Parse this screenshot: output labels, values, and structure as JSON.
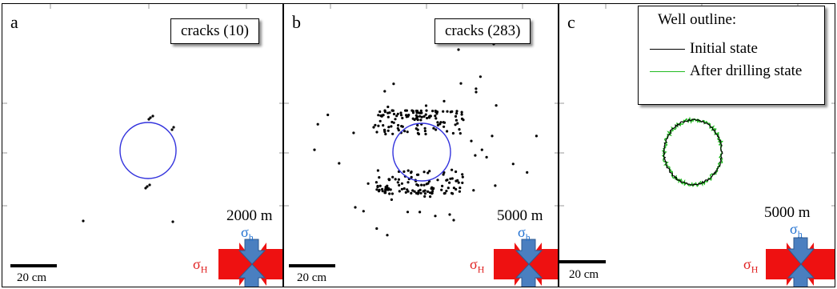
{
  "panels": [
    {
      "label": "a",
      "cracks_label": "cracks",
      "cracks_count": "(10)",
      "depth": "2000 m",
      "scale": "20 cm"
    },
    {
      "label": "b",
      "cracks_label": "cracks",
      "cracks_count": "(283)",
      "depth": "5000 m",
      "scale": "20 cm"
    },
    {
      "label": "c",
      "depth": "5000 m",
      "scale": "20 cm"
    }
  ],
  "stress": {
    "sigma": "σ",
    "h_sub": "h",
    "H_sub": "H"
  },
  "legend": {
    "title": "Well outline:",
    "initial": "Initial state",
    "after": "After drilling state"
  },
  "colors": {
    "well": "#3333dd",
    "crack": "#000000",
    "initial": "#000000",
    "after": "#22bb22",
    "sigma_h_text": "#1e6fd0",
    "sigma_H_text": "#e02020",
    "arrow_h": "#4a7fc0",
    "arrow_H": "#ee1111"
  }
}
